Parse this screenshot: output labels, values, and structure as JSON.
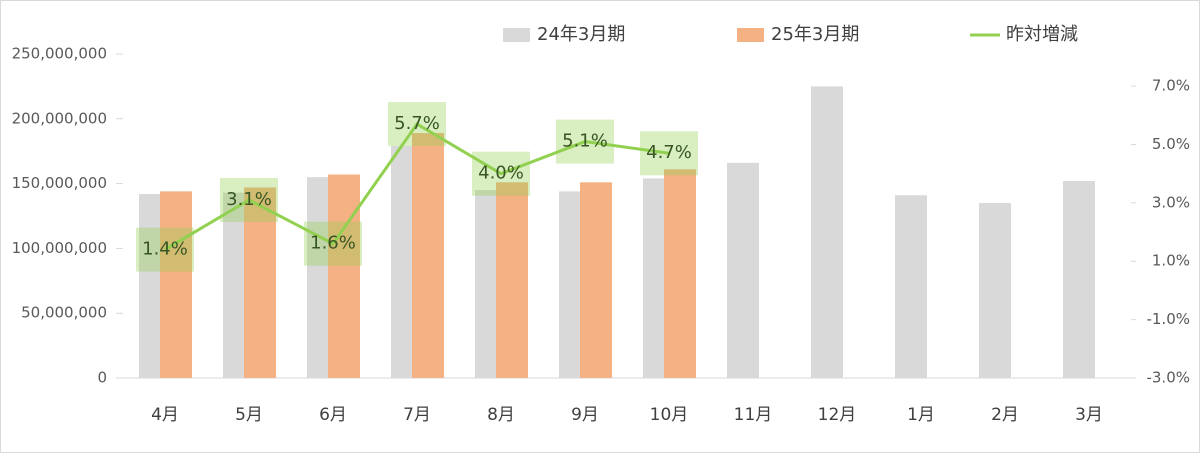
{
  "chart_data": {
    "type": "bar",
    "categories": [
      "4月",
      "5月",
      "6月",
      "7月",
      "8月",
      "9月",
      "10月",
      "11月",
      "12月",
      "1月",
      "2月",
      "3月"
    ],
    "series": [
      {
        "name": "24年3月期",
        "type": "bar",
        "color": "#d9d9d9",
        "values": [
          142000000,
          143000000,
          155000000,
          179000000,
          145000000,
          144000000,
          154000000,
          166000000,
          225000000,
          141000000,
          135000000,
          152000000
        ]
      },
      {
        "name": "25年3月期",
        "type": "bar",
        "color": "#f4b183",
        "values": [
          144000000,
          147000000,
          157000000,
          189000000,
          151000000,
          151000000,
          161000000,
          null,
          null,
          null,
          null,
          null
        ]
      },
      {
        "name": "昨対増減",
        "type": "line",
        "axis": "y2",
        "color": "#92d050",
        "values": [
          1.4,
          3.1,
          1.6,
          5.7,
          4.0,
          5.1,
          4.7,
          null,
          null,
          null,
          null,
          null
        ],
        "value_labels": [
          "1.4%",
          "3.1%",
          "1.6%",
          "5.7%",
          "4.0%",
          "5.1%",
          "4.7%",
          null,
          null,
          null,
          null,
          null
        ]
      }
    ],
    "ylim": [
      0,
      250000000
    ],
    "yticks": [
      0,
      {
        "value": 50000000,
        "label": "50,000,000"
      },
      {
        "value": 100000000,
        "label": "100,000,000"
      },
      {
        "value": 150000000,
        "label": "150,000,000"
      },
      {
        "value": 200000000,
        "label": "200,000,000"
      },
      {
        "value": 250000000,
        "label": "250,000,000"
      }
    ],
    "y2lim": [
      -3.0,
      8.1
    ],
    "y2ticks": [
      {
        "value": -3,
        "label": "-3.0%"
      },
      {
        "value": -1,
        "label": "-1.0%"
      },
      {
        "value": 1,
        "label": "1.0%"
      },
      {
        "value": 3,
        "label": "3.0%"
      },
      {
        "value": 5,
        "label": "5.0%"
      },
      {
        "value": 7,
        "label": "7.0%"
      }
    ],
    "legend": "top",
    "grid": false
  }
}
